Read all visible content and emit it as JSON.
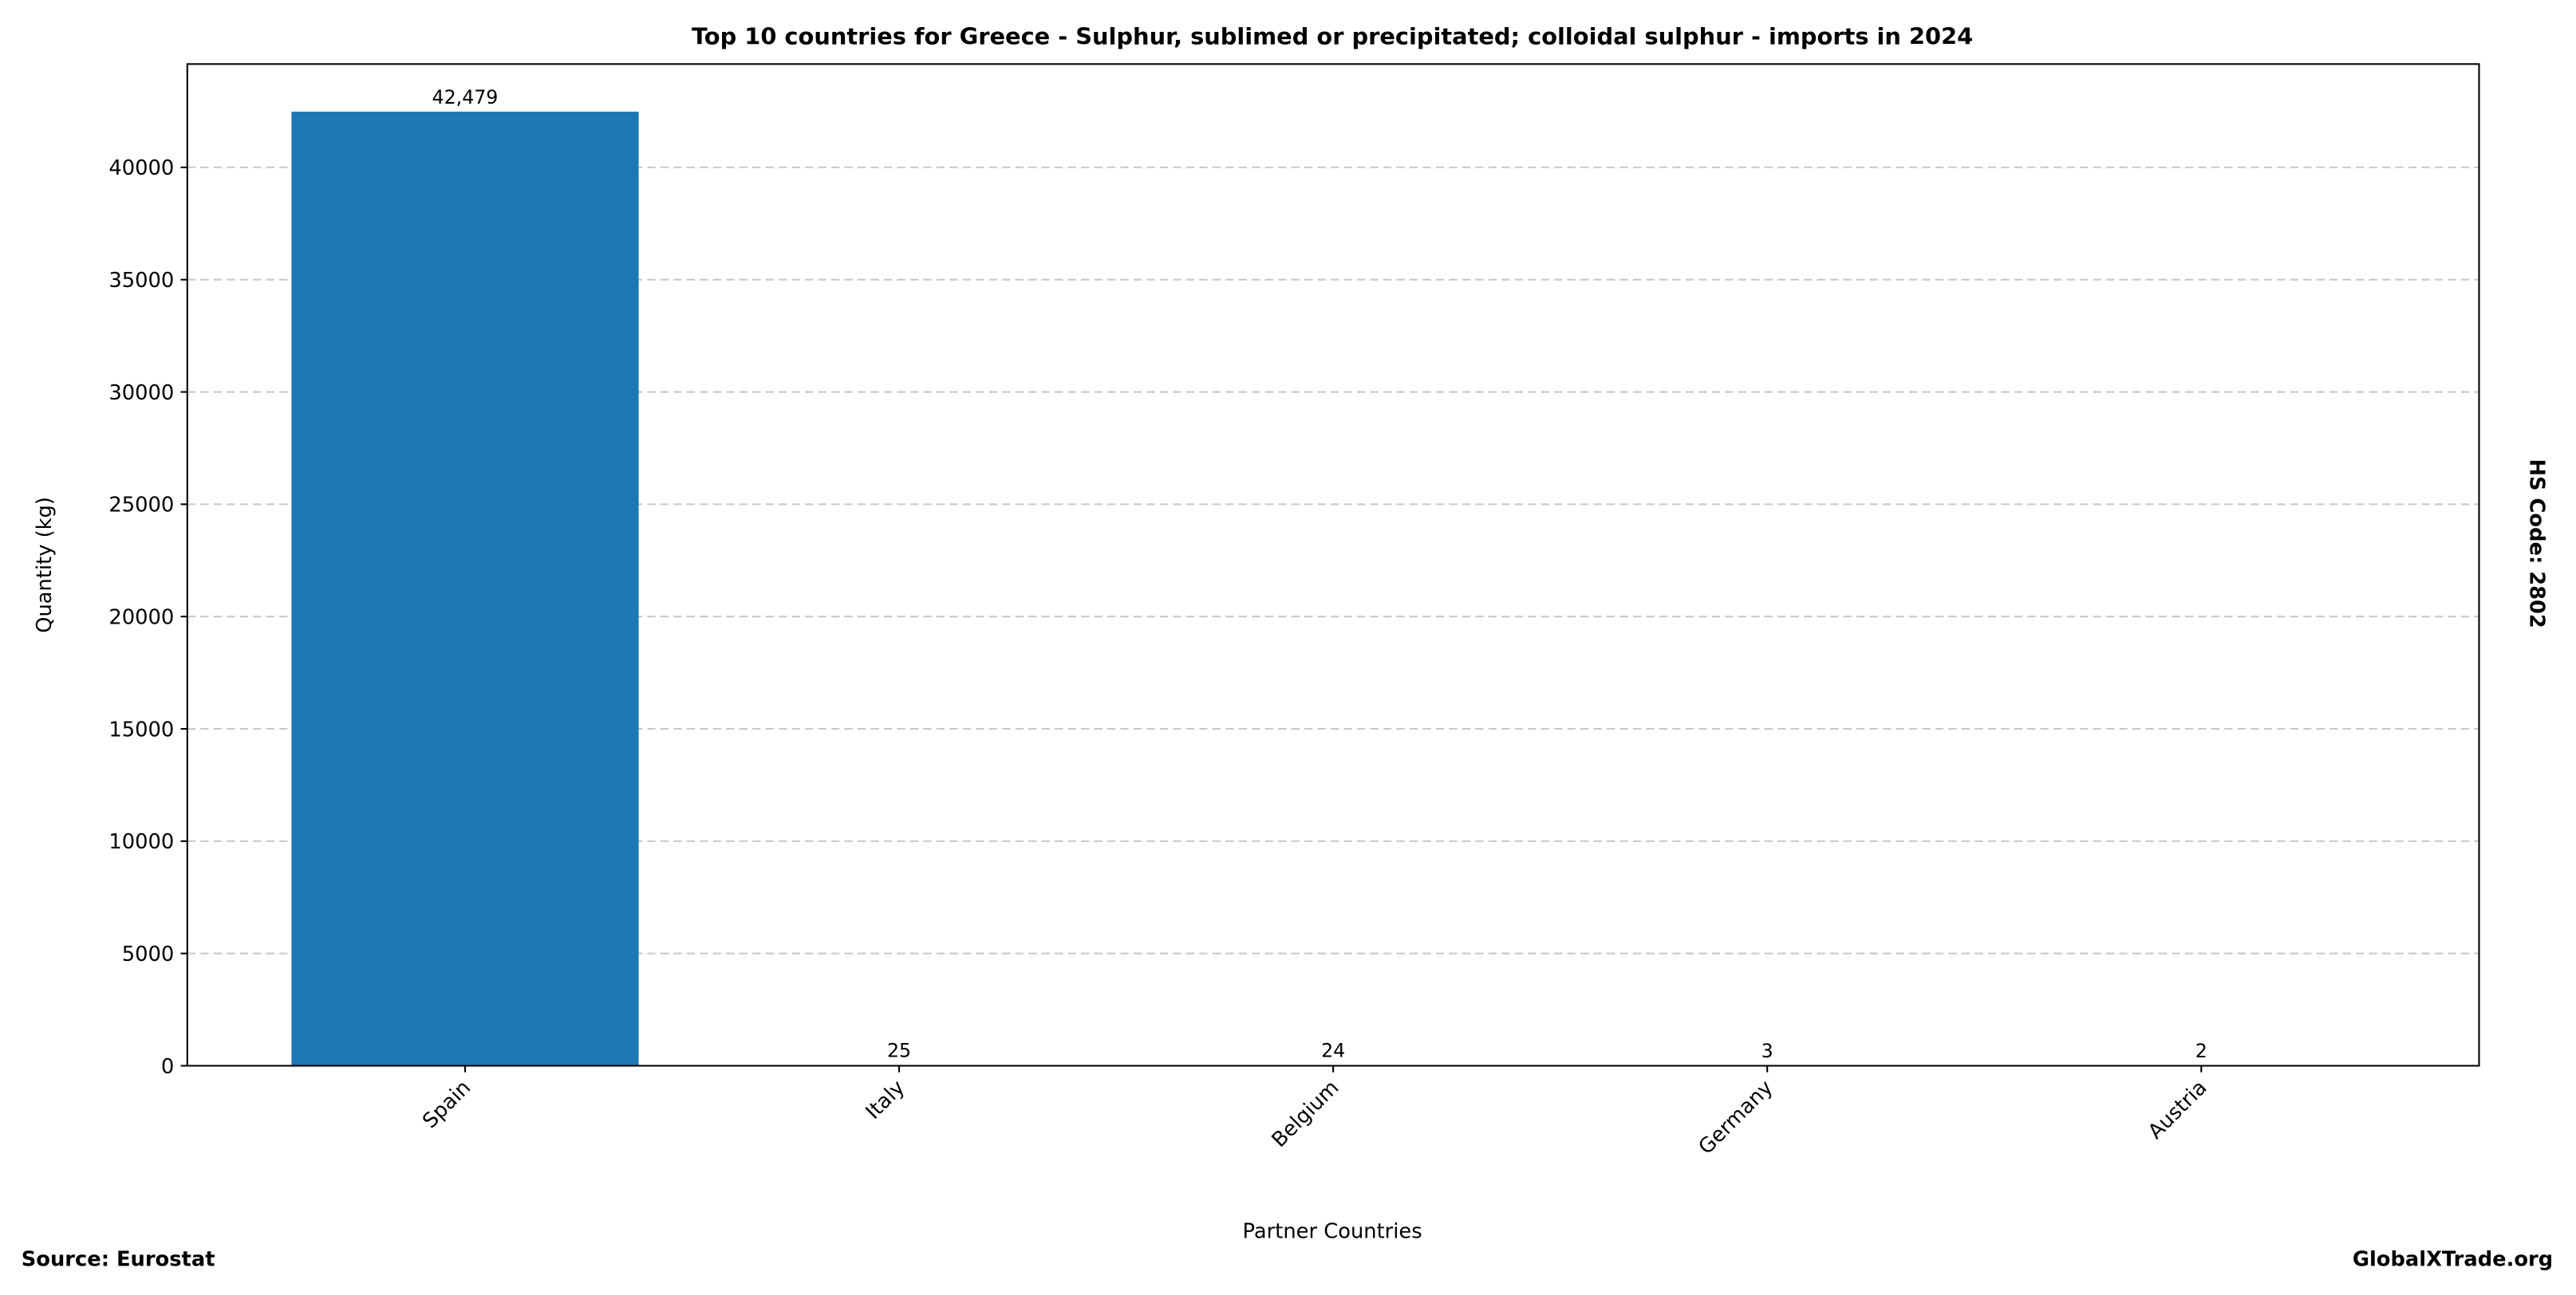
{
  "chart_data": {
    "type": "bar",
    "title": "Top 10 countries for Greece - Sulphur, sublimed or precipitated; colloidal sulphur - imports in 2024",
    "x_label": "Partner Countries",
    "y_label": "Quantity (kg)",
    "side_label": "HS Code: 2802",
    "source": "Source: Eurostat",
    "credit": "GlobalXTrade.org",
    "categories": [
      "Spain",
      "Italy",
      "Belgium",
      "Germany",
      "Austria"
    ],
    "values": [
      42479,
      25,
      24,
      3,
      2
    ],
    "value_labels": [
      "42,479",
      "25",
      "24",
      "3",
      "2"
    ],
    "color": "#1f77b4",
    "ylim": [
      0,
      44600
    ],
    "yticks": [
      0,
      5000,
      10000,
      15000,
      20000,
      25000,
      30000,
      35000,
      40000
    ],
    "grid": true
  }
}
